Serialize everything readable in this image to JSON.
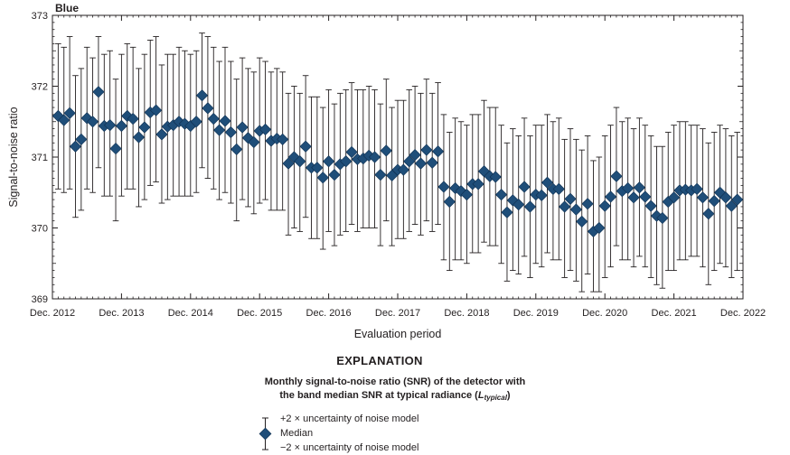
{
  "chart_data": {
    "type": "scatter",
    "title": "Blue",
    "xlabel": "Evaluation period",
    "ylabel": "Signal-to-noise ratio",
    "ylim": [
      369,
      373
    ],
    "yticks": [
      "369",
      "370",
      "371",
      "372",
      "373"
    ],
    "xlim": [
      "2012-12",
      "2022-12"
    ],
    "xticks": [
      "Dec. 2012",
      "Dec. 2013",
      "Dec. 2014",
      "Dec. 2015",
      "Dec. 2016",
      "Dec. 2017",
      "Dec. 2018",
      "Dec. 2019",
      "Dec. 2020",
      "Dec. 2021",
      "Dec. 2022"
    ],
    "grid": false,
    "marker_color": "#1f4e79",
    "series": [
      {
        "name": "Median",
        "x": [
          "2013-01",
          "2013-02",
          "2013-03",
          "2013-04",
          "2013-05",
          "2013-06",
          "2013-07",
          "2013-08",
          "2013-09",
          "2013-10",
          "2013-11",
          "2013-12",
          "2014-01",
          "2014-02",
          "2014-03",
          "2014-04",
          "2014-05",
          "2014-06",
          "2014-07",
          "2014-08",
          "2014-09",
          "2014-10",
          "2014-11",
          "2014-12",
          "2015-01",
          "2015-02",
          "2015-03",
          "2015-04",
          "2015-05",
          "2015-06",
          "2015-07",
          "2015-08",
          "2015-09",
          "2015-10",
          "2015-11",
          "2015-12",
          "2016-01",
          "2016-02",
          "2016-03",
          "2016-04",
          "2016-05",
          "2016-06",
          "2016-07",
          "2016-08",
          "2016-09",
          "2016-10",
          "2016-11",
          "2016-12",
          "2017-01",
          "2017-02",
          "2017-03",
          "2017-04",
          "2017-05",
          "2017-06",
          "2017-07",
          "2017-08",
          "2017-09",
          "2017-10",
          "2017-11",
          "2017-12",
          "2018-01",
          "2018-02",
          "2018-03",
          "2018-04",
          "2018-05",
          "2018-06",
          "2018-07",
          "2018-08",
          "2018-09",
          "2018-10",
          "2018-11",
          "2018-12",
          "2019-01",
          "2019-02",
          "2019-03",
          "2019-04",
          "2019-05",
          "2019-06",
          "2019-07",
          "2019-08",
          "2019-09",
          "2019-10",
          "2019-11",
          "2019-12",
          "2020-01",
          "2020-02",
          "2020-03",
          "2020-04",
          "2020-05",
          "2020-06",
          "2020-07",
          "2020-08",
          "2020-09",
          "2020-10",
          "2020-11",
          "2020-12",
          "2021-01",
          "2021-02",
          "2021-03",
          "2021-04",
          "2021-05",
          "2021-06",
          "2021-07",
          "2021-08",
          "2021-09",
          "2021-10",
          "2021-11",
          "2021-12",
          "2022-01",
          "2022-02",
          "2022-03",
          "2022-04",
          "2022-05",
          "2022-06",
          "2022-07",
          "2022-08",
          "2022-09",
          "2022-10",
          "2022-11"
        ],
        "median": [
          371.58,
          371.52,
          371.62,
          371.15,
          371.25,
          371.55,
          371.5,
          371.92,
          371.44,
          371.45,
          371.12,
          371.44,
          371.58,
          371.54,
          371.28,
          371.42,
          371.63,
          371.66,
          371.32,
          371.43,
          371.45,
          371.5,
          371.47,
          371.44,
          371.5,
          371.87,
          371.69,
          371.54,
          371.38,
          371.51,
          371.35,
          371.11,
          371.42,
          371.27,
          371.21,
          371.37,
          371.39,
          371.23,
          371.26,
          371.25,
          370.91,
          371.0,
          370.94,
          371.15,
          370.85,
          370.85,
          370.71,
          370.94,
          370.75,
          370.9,
          370.94,
          371.07,
          370.97,
          370.98,
          371.02,
          371.0,
          370.75,
          371.09,
          370.74,
          370.82,
          370.82,
          370.94,
          371.03,
          370.91,
          371.1,
          370.92,
          371.08,
          370.58,
          370.37,
          370.56,
          370.52,
          370.47,
          370.62,
          370.62,
          370.8,
          370.73,
          370.72,
          370.47,
          370.22,
          370.39,
          370.33,
          370.58,
          370.3,
          370.47,
          370.46,
          370.64,
          370.55,
          370.55,
          370.3,
          370.41,
          370.26,
          370.09,
          370.34,
          369.95,
          370.0,
          370.31,
          370.44,
          370.73,
          370.52,
          370.56,
          370.43,
          370.57,
          370.44,
          370.31,
          370.17,
          370.14,
          370.37,
          370.43,
          370.53,
          370.54,
          370.53,
          370.55,
          370.43,
          370.2,
          370.38,
          370.5,
          370.43,
          370.31,
          370.4
        ],
        "upper": [
          372.6,
          372.55,
          372.7,
          372.15,
          372.25,
          372.55,
          372.4,
          372.7,
          372.45,
          372.5,
          372.1,
          372.45,
          372.6,
          372.55,
          372.25,
          372.45,
          372.65,
          372.7,
          372.3,
          372.45,
          372.45,
          372.55,
          372.5,
          372.45,
          372.5,
          372.75,
          372.7,
          372.55,
          372.35,
          372.55,
          372.35,
          372.1,
          372.4,
          372.25,
          372.2,
          372.4,
          372.35,
          372.2,
          372.25,
          372.2,
          371.9,
          372.0,
          371.9,
          372.15,
          371.85,
          371.85,
          371.7,
          371.95,
          371.75,
          371.9,
          371.95,
          372.05,
          371.95,
          371.95,
          372.0,
          371.95,
          371.75,
          372.1,
          371.7,
          371.8,
          371.8,
          371.95,
          372.0,
          371.9,
          372.1,
          371.9,
          372.05,
          371.6,
          371.35,
          371.55,
          371.5,
          371.45,
          371.6,
          371.6,
          371.8,
          371.7,
          371.7,
          371.45,
          371.2,
          371.4,
          371.3,
          371.55,
          371.3,
          371.45,
          371.45,
          371.6,
          371.5,
          371.55,
          371.25,
          371.4,
          371.25,
          371.1,
          371.3,
          370.95,
          371.0,
          371.3,
          371.45,
          371.7,
          371.5,
          371.55,
          371.4,
          371.55,
          371.45,
          371.3,
          371.15,
          371.15,
          371.35,
          371.45,
          371.5,
          371.5,
          371.45,
          371.45,
          371.4,
          371.2,
          371.35,
          371.45,
          371.4,
          371.3,
          371.35
        ],
        "lower": [
          370.55,
          370.5,
          370.55,
          370.15,
          370.25,
          370.55,
          370.5,
          370.85,
          370.45,
          370.45,
          370.1,
          370.45,
          370.55,
          370.55,
          370.3,
          370.4,
          370.6,
          370.65,
          370.35,
          370.4,
          370.45,
          370.45,
          370.45,
          370.45,
          370.5,
          370.85,
          370.7,
          370.55,
          370.4,
          370.5,
          370.35,
          370.1,
          370.4,
          370.3,
          370.2,
          370.35,
          370.4,
          370.25,
          370.25,
          370.25,
          369.9,
          370.0,
          369.95,
          370.15,
          369.85,
          369.85,
          369.7,
          369.95,
          369.75,
          369.9,
          369.95,
          370.05,
          369.95,
          370.0,
          370.0,
          370.0,
          369.75,
          370.1,
          369.75,
          369.85,
          369.85,
          369.95,
          370.05,
          369.9,
          370.1,
          369.95,
          370.05,
          369.55,
          369.4,
          369.55,
          369.55,
          369.5,
          369.65,
          369.65,
          369.8,
          369.75,
          369.75,
          369.5,
          369.25,
          369.4,
          369.35,
          369.6,
          369.3,
          369.5,
          369.45,
          369.65,
          369.55,
          369.55,
          369.3,
          369.4,
          369.25,
          369.1,
          369.35,
          369.1,
          369.1,
          369.3,
          369.45,
          369.75,
          369.55,
          369.55,
          369.45,
          369.6,
          369.45,
          369.3,
          369.2,
          369.15,
          369.4,
          369.4,
          369.55,
          369.55,
          369.6,
          369.6,
          369.45,
          369.2,
          369.4,
          369.5,
          369.45,
          369.3,
          369.4
        ]
      }
    ]
  },
  "legend": {
    "heading": "EXPLANATION",
    "caption_line1": "Monthly signal-to-noise ratio (SNR) of the detector with",
    "caption_line2_pre": "the band median SNR at typical radiance (",
    "caption_symbol": "L",
    "caption_subscript": "typical",
    "caption_line2_post": ")",
    "items": [
      {
        "label": "+2 × uncertainty of noise model",
        "icon": "upper-whisker-icon"
      },
      {
        "label": "Median",
        "icon": "diamond-marker-icon"
      },
      {
        "label": "−2 × uncertainty of noise model",
        "icon": "lower-whisker-icon"
      }
    ]
  }
}
